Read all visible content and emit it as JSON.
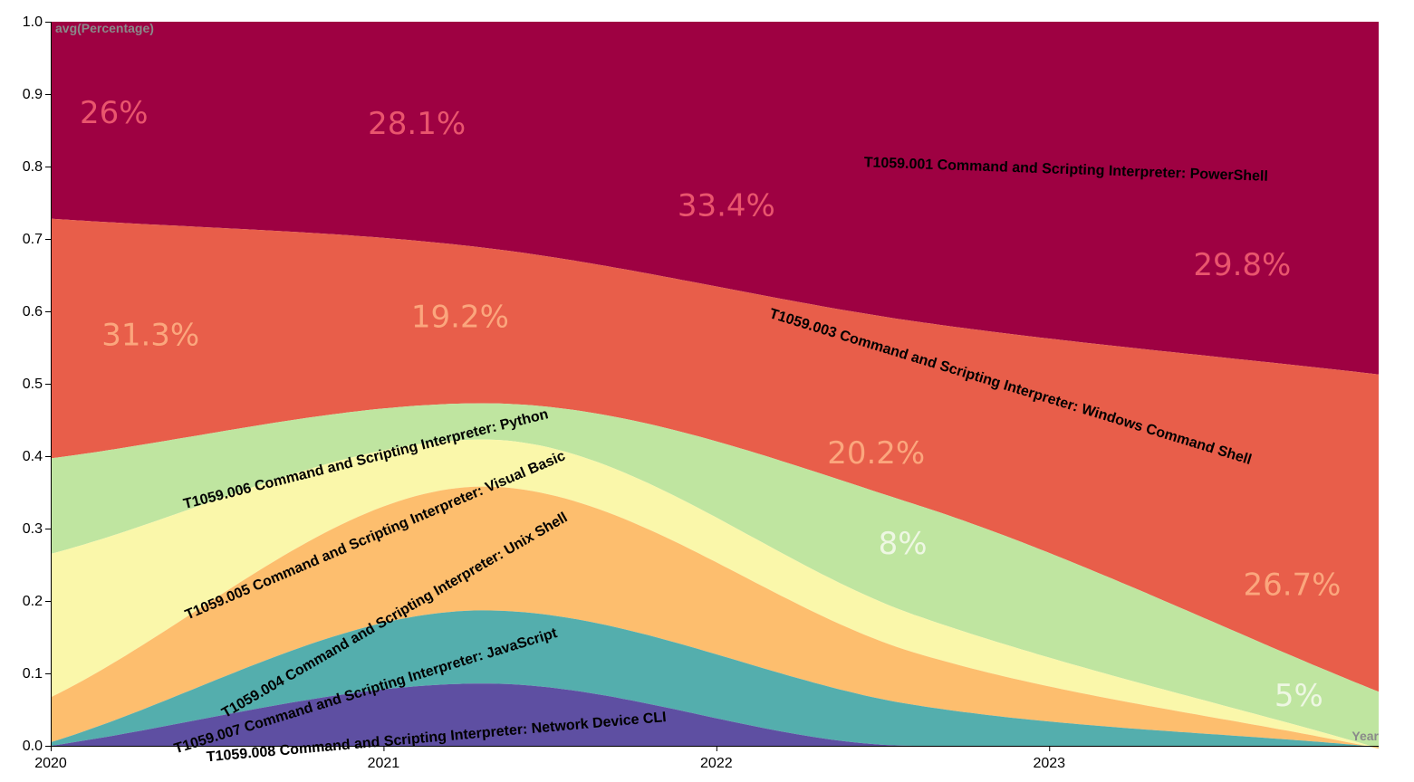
{
  "chart_data": {
    "type": "area",
    "xlabel": "Year",
    "ylabel": "avg(Percentage)",
    "ylim": [
      0,
      1
    ],
    "x_ticks": [
      "2020",
      "2021",
      "2022",
      "2023"
    ],
    "y_ticks": [
      "0.0",
      "0.1",
      "0.2",
      "0.3",
      "0.4",
      "0.5",
      "0.6",
      "0.7",
      "0.8",
      "0.9",
      "1.0"
    ],
    "x": [
      2020,
      2021.3,
      2022.6,
      2023.95
    ],
    "series": [
      {
        "name": "T1059.008 Command and Scripting Interpreter: Network Device CLI",
        "color": "#5e4fa2",
        "values": [
          0.0,
          0.086,
          0.0,
          0.0
        ]
      },
      {
        "name": "T1059.007 Command and Scripting Interpreter: JavaScript",
        "color": "#54aead",
        "values": [
          0.005,
          0.101,
          0.056,
          0.0
        ]
      },
      {
        "name": "T1059.004 Command and Scripting Interpreter: Unix Shell",
        "color": "#fdbe6e",
        "values": [
          0.062,
          0.171,
          0.072,
          0.0
        ]
      },
      {
        "name": "T1059.005 Command and Scripting Interpreter: Visual Basic",
        "color": "#faf7aa",
        "values": [
          0.198,
          0.065,
          0.052,
          0.002
        ]
      },
      {
        "name": "T1059.006 Command and Scripting Interpreter: Python",
        "color": "#bfe5a0",
        "values": [
          0.132,
          0.05,
          0.153,
          0.08
        ]
      },
      {
        "name": "T1059.003 Command and Scripting Interpreter: Windows Command Shell",
        "color": "#e85e4a",
        "values": [
          0.331,
          0.215,
          0.253,
          0.433
        ]
      },
      {
        "name": "T1059.001 Command and Scripting Interpreter: PowerShell",
        "color": "#9e0142",
        "values": [
          0.272,
          0.312,
          0.414,
          0.485
        ]
      }
    ],
    "percent_labels": [
      {
        "text": "26%",
        "color": "#e9556d",
        "x": 2020.19,
        "y": 0.86
      },
      {
        "text": "28.1%",
        "color": "#e9556d",
        "x": 2021.1,
        "y": 0.845
      },
      {
        "text": "33.4%",
        "color": "#e9556d",
        "x": 2022.03,
        "y": 0.732
      },
      {
        "text": "29.8%",
        "color": "#e9556d",
        "x": 2023.58,
        "y": 0.65
      },
      {
        "text": "31.3%",
        "color": "#fba67d",
        "x": 2020.3,
        "y": 0.553
      },
      {
        "text": "19.2%",
        "color": "#fba67d",
        "x": 2021.23,
        "y": 0.578
      },
      {
        "text": "20.2%",
        "color": "#fba67d",
        "x": 2022.48,
        "y": 0.39
      },
      {
        "text": "26.7%",
        "color": "#fba67d",
        "x": 2023.73,
        "y": 0.208
      },
      {
        "text": "8%",
        "color": "#eef7e3",
        "x": 2022.56,
        "y": 0.265
      },
      {
        "text": "5%",
        "color": "#eef7e3",
        "x": 2023.75,
        "y": 0.055
      }
    ],
    "series_labels": [
      {
        "series": 0,
        "x": 2021.16,
        "y": 0.006,
        "angle": -5
      },
      {
        "series": 1,
        "x": 2020.95,
        "y": 0.07,
        "angle": -17
      },
      {
        "series": 2,
        "x": 2021.04,
        "y": 0.175,
        "angle": -30
      },
      {
        "series": 3,
        "x": 2020.98,
        "y": 0.285,
        "angle": -23
      },
      {
        "series": 4,
        "x": 2020.95,
        "y": 0.39,
        "angle": -14
      },
      {
        "series": 5,
        "x": 2022.88,
        "y": 0.49,
        "angle": 17
      },
      {
        "series": 6,
        "x": 2023.05,
        "y": 0.79,
        "angle": 2
      }
    ]
  }
}
